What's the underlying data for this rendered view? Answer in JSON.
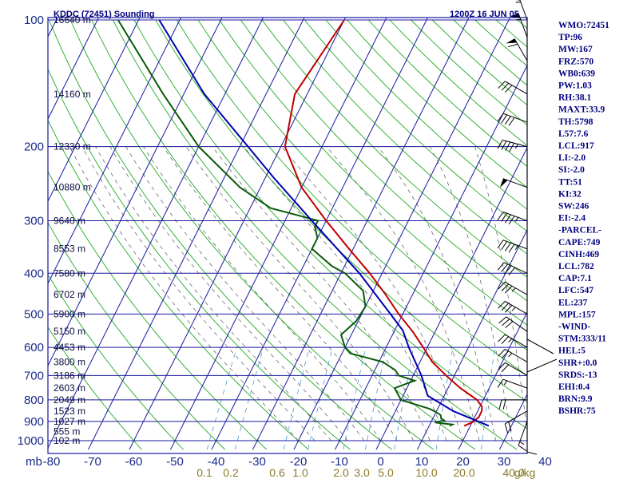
{
  "header": {
    "station": "KDDC (72451) Sounding",
    "datetime": "1200Z 16 JUN 05"
  },
  "axis_prefix_label": "mb",
  "indices": [
    "WMO:72451",
    "TP:96",
    "MW:167",
    "FRZ:570",
    "WB0:639",
    "PW:1.03",
    "RH:38.1",
    "MAXT:33.9",
    "TH:5798",
    "L57:7.6",
    "LCL:917",
    "LI:-2.0",
    "SI:-2.0",
    "TT:51",
    "KI:32",
    "SW:246",
    "EI:-2.4",
    "-PARCEL-",
    "CAPE:749",
    "CINH:469",
    "LCL:782",
    "CAP:7.1",
    "LFC:547",
    "EL:237",
    "MPL:157",
    "-WIND-",
    "STM:333/11",
    "HEL:5",
    "SHR+:0.0",
    "SRDS:-13",
    "EHI:0.4",
    "BRN:9.9",
    "BSHR:75"
  ],
  "colors": {
    "temperature": "#c00000",
    "dewpoint": "#0a5a0a",
    "parcel": "#0000b0",
    "isobar": "#1818a0",
    "isotherm": "#1818a0",
    "dry_adiabat": "#22aa22",
    "moist_adiabat": "#555555",
    "mixing_ratio": "#3388cc",
    "wind_barb": "#000000"
  },
  "chart_data": {
    "type": "skewt",
    "pressure_ticks": [
      100,
      200,
      300,
      400,
      500,
      600,
      700,
      800,
      900,
      1000
    ],
    "pressure_tick_labels": [
      "100",
      "200",
      "300",
      "400",
      "500",
      "600",
      "700",
      "800",
      "900",
      "1000"
    ],
    "temperature_ticks": [
      -80,
      -70,
      -60,
      -50,
      -40,
      -30,
      -20,
      -10,
      0,
      10,
      20,
      30,
      40
    ],
    "temperature_tick_labels": [
      "-80",
      "-70",
      "-60",
      "-50",
      "-40",
      "-30",
      "-20",
      "-10",
      "0",
      "10",
      "20",
      "30",
      "40"
    ],
    "xlim_c_at_surface": [
      -80,
      40
    ],
    "ylim_mb": [
      1050,
      100
    ],
    "height_labels": [
      {
        "p": 100,
        "label": "16640 m"
      },
      {
        "p": 150,
        "label": "14160 m"
      },
      {
        "p": 200,
        "label": "12330 m"
      },
      {
        "p": 250,
        "label": "10880 m"
      },
      {
        "p": 300,
        "label": "9640 m"
      },
      {
        "p": 350,
        "label": "8553 m"
      },
      {
        "p": 400,
        "label": "7580 m"
      },
      {
        "p": 450,
        "label": "6702 m"
      },
      {
        "p": 500,
        "label": "5900 m"
      },
      {
        "p": 550,
        "label": "5150 m"
      },
      {
        "p": 600,
        "label": "4453 m"
      },
      {
        "p": 650,
        "label": "3800 m"
      },
      {
        "p": 700,
        "label": "3186 m"
      },
      {
        "p": 750,
        "label": "2603 m"
      },
      {
        "p": 800,
        "label": "2049 m"
      },
      {
        "p": 850,
        "label": "1523 m"
      },
      {
        "p": 900,
        "label": "1027 m"
      },
      {
        "p": 950,
        "label": "555 m"
      },
      {
        "p": 1000,
        "label": "102 m"
      }
    ],
    "mixing_ratio_labels": [
      "0.1",
      "0.2",
      "0.6",
      "1.0",
      "2.0",
      "3.0",
      "5.0",
      "10.0",
      "20.0",
      "40.0"
    ],
    "mixing_ratio_unit": "g/kg",
    "series": [
      {
        "key": "temperature",
        "points": [
          [
            922,
            18.5
          ],
          [
            905,
            20
          ],
          [
            880,
            21
          ],
          [
            850,
            21
          ],
          [
            830,
            20.5
          ],
          [
            800,
            18.5
          ],
          [
            750,
            13
          ],
          [
            700,
            8
          ],
          [
            650,
            3
          ],
          [
            600,
            -1
          ],
          [
            550,
            -5.5
          ],
          [
            500,
            -11
          ],
          [
            450,
            -16.5
          ],
          [
            400,
            -23
          ],
          [
            350,
            -31
          ],
          [
            300,
            -40
          ],
          [
            250,
            -50
          ],
          [
            200,
            -59
          ],
          [
            150,
            -63
          ],
          [
            100,
            -60
          ]
        ]
      },
      {
        "key": "dewpoint",
        "points": [
          [
            922,
            15
          ],
          [
            915,
            15.5
          ],
          [
            905,
            11
          ],
          [
            895,
            13
          ],
          [
            885,
            12
          ],
          [
            870,
            11.5
          ],
          [
            855,
            10
          ],
          [
            840,
            8
          ],
          [
            800,
            0
          ],
          [
            750,
            -3
          ],
          [
            720,
            1
          ],
          [
            700,
            -3.5
          ],
          [
            680,
            -5
          ],
          [
            650,
            -9
          ],
          [
            620,
            -18
          ],
          [
            600,
            -20
          ],
          [
            560,
            -22.5
          ],
          [
            520,
            -20.5
          ],
          [
            480,
            -20
          ],
          [
            440,
            -22.5
          ],
          [
            400,
            -29
          ],
          [
            385,
            -33
          ],
          [
            350,
            -40
          ],
          [
            330,
            -40
          ],
          [
            310,
            -42
          ],
          [
            300,
            -42
          ],
          [
            280,
            -55
          ],
          [
            250,
            -65
          ],
          [
            200,
            -80
          ],
          [
            150,
            -95
          ],
          [
            100,
            -115
          ]
        ]
      },
      {
        "key": "parcel",
        "points": [
          [
            922,
            24.5
          ],
          [
            850,
            14
          ],
          [
            782,
            6
          ],
          [
            700,
            2
          ],
          [
            600,
            -4.5
          ],
          [
            547,
            -8
          ],
          [
            500,
            -13
          ],
          [
            400,
            -25.5
          ],
          [
            300,
            -43.5
          ],
          [
            237,
            -58
          ],
          [
            200,
            -68
          ],
          [
            150,
            -85
          ],
          [
            100,
            -105
          ]
        ]
      }
    ],
    "winds": [
      {
        "p": 925,
        "dir": 180,
        "spd": 10
      },
      {
        "p": 900,
        "dir": 200,
        "spd": 15
      },
      {
        "p": 850,
        "dir": 240,
        "spd": 20
      },
      {
        "p": 800,
        "dir": 270,
        "spd": 20
      },
      {
        "p": 750,
        "dir": 290,
        "spd": 15
      },
      {
        "p": 700,
        "dir": 300,
        "spd": 20
      },
      {
        "p": 650,
        "dir": 300,
        "spd": 25
      },
      {
        "p": 600,
        "dir": 300,
        "spd": 25
      },
      {
        "p": 550,
        "dir": 305,
        "spd": 30
      },
      {
        "p": 500,
        "dir": 300,
        "spd": 35
      },
      {
        "p": 450,
        "dir": 300,
        "spd": 35
      },
      {
        "p": 400,
        "dir": 295,
        "spd": 40
      },
      {
        "p": 350,
        "dir": 290,
        "spd": 45
      },
      {
        "p": 300,
        "dir": 290,
        "spd": 45
      },
      {
        "p": 250,
        "dir": 290,
        "spd": 50
      },
      {
        "p": 200,
        "dir": 285,
        "spd": 45
      },
      {
        "p": 175,
        "dir": 290,
        "spd": 40
      },
      {
        "p": 150,
        "dir": 300,
        "spd": 30
      },
      {
        "p": 125,
        "dir": 330,
        "spd": 60
      },
      {
        "p": 110,
        "dir": 340,
        "spd": 55
      },
      {
        "p": 100,
        "dir": 340,
        "spd": 55
      }
    ],
    "grid": true,
    "legend": "none"
  }
}
